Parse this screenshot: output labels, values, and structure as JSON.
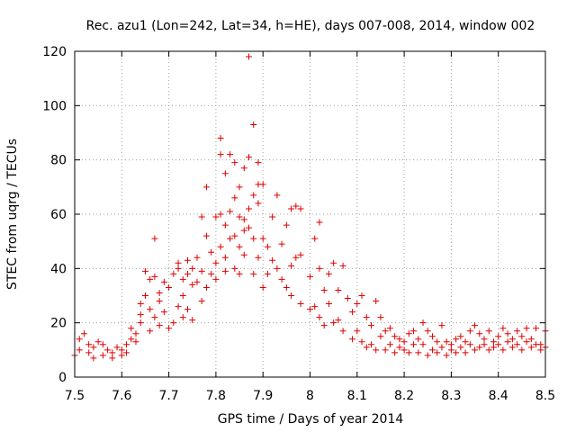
{
  "chart_data": {
    "type": "scatter",
    "title": "Rec. azu1 (Lon=242, Lat=34, h=HE), days 007-008, 2014, window 002",
    "xlabel": "GPS time / Days of year 2014",
    "ylabel": "STEC from uqrg / TECUs",
    "xlim": [
      7.5,
      8.5
    ],
    "ylim": [
      0,
      120
    ],
    "xticks": [
      7.5,
      7.6,
      7.7,
      7.8,
      7.9,
      8.0,
      8.1,
      8.2,
      8.3,
      8.4,
      8.5
    ],
    "xtick_labels": [
      "7.5",
      "7.6",
      "7.7",
      "7.8",
      "7.9",
      "8",
      "8.1",
      "8.2",
      "8.3",
      "8.4",
      "8.5"
    ],
    "yticks": [
      0,
      20,
      40,
      60,
      80,
      100,
      120
    ],
    "ytick_labels": [
      "0",
      "20",
      "40",
      "60",
      "80",
      "100",
      "120"
    ],
    "grid": true,
    "marker": "+",
    "color": "#e00000",
    "series": [
      {
        "name": "STEC",
        "points": [
          [
            7.5,
            8
          ],
          [
            7.51,
            10
          ],
          [
            7.51,
            14
          ],
          [
            7.52,
            16
          ],
          [
            7.53,
            9
          ],
          [
            7.53,
            12
          ],
          [
            7.54,
            7
          ],
          [
            7.54,
            11
          ],
          [
            7.55,
            13
          ],
          [
            7.56,
            8
          ],
          [
            7.56,
            12
          ],
          [
            7.57,
            10
          ],
          [
            7.58,
            7
          ],
          [
            7.58,
            9
          ],
          [
            7.59,
            11
          ],
          [
            7.6,
            8
          ],
          [
            7.6,
            10
          ],
          [
            7.61,
            12
          ],
          [
            7.61,
            9
          ],
          [
            7.62,
            14
          ],
          [
            7.62,
            18
          ],
          [
            7.63,
            13
          ],
          [
            7.63,
            16
          ],
          [
            7.64,
            20
          ],
          [
            7.64,
            23
          ],
          [
            7.64,
            27
          ],
          [
            7.65,
            30
          ],
          [
            7.65,
            39
          ],
          [
            7.66,
            25
          ],
          [
            7.66,
            36
          ],
          [
            7.66,
            17
          ],
          [
            7.67,
            51
          ],
          [
            7.67,
            37
          ],
          [
            7.67,
            22
          ],
          [
            7.68,
            31
          ],
          [
            7.68,
            28
          ],
          [
            7.68,
            19
          ],
          [
            7.69,
            35
          ],
          [
            7.69,
            24
          ],
          [
            7.7,
            33
          ],
          [
            7.7,
            18
          ],
          [
            7.71,
            38
          ],
          [
            7.71,
            20
          ],
          [
            7.72,
            40
          ],
          [
            7.72,
            42
          ],
          [
            7.72,
            26
          ],
          [
            7.73,
            36
          ],
          [
            7.73,
            30
          ],
          [
            7.73,
            22
          ],
          [
            7.74,
            43
          ],
          [
            7.74,
            38
          ],
          [
            7.74,
            25
          ],
          [
            7.75,
            40
          ],
          [
            7.75,
            34
          ],
          [
            7.75,
            21
          ],
          [
            7.76,
            44
          ],
          [
            7.76,
            35
          ],
          [
            7.77,
            59
          ],
          [
            7.77,
            39
          ],
          [
            7.77,
            28
          ],
          [
            7.78,
            70
          ],
          [
            7.78,
            52
          ],
          [
            7.78,
            33
          ],
          [
            7.79,
            46
          ],
          [
            7.79,
            38
          ],
          [
            7.8,
            59
          ],
          [
            7.8,
            42
          ],
          [
            7.8,
            36
          ],
          [
            7.81,
            88
          ],
          [
            7.81,
            82
          ],
          [
            7.81,
            48
          ],
          [
            7.81,
            60
          ],
          [
            7.82,
            75
          ],
          [
            7.82,
            56
          ],
          [
            7.82,
            44
          ],
          [
            7.82,
            39
          ],
          [
            7.83,
            82
          ],
          [
            7.83,
            61
          ],
          [
            7.83,
            51
          ],
          [
            7.84,
            79
          ],
          [
            7.84,
            66
          ],
          [
            7.84,
            52
          ],
          [
            7.84,
            40
          ],
          [
            7.85,
            70
          ],
          [
            7.85,
            59
          ],
          [
            7.85,
            48
          ],
          [
            7.85,
            38
          ],
          [
            7.86,
            77
          ],
          [
            7.86,
            58
          ],
          [
            7.86,
            54
          ],
          [
            7.86,
            45
          ],
          [
            7.87,
            118
          ],
          [
            7.87,
            81
          ],
          [
            7.87,
            62
          ],
          [
            7.87,
            55
          ],
          [
            7.88,
            93
          ],
          [
            7.88,
            67
          ],
          [
            7.88,
            51
          ],
          [
            7.88,
            38
          ],
          [
            7.89,
            79
          ],
          [
            7.89,
            71
          ],
          [
            7.89,
            64
          ],
          [
            7.89,
            44
          ],
          [
            7.9,
            71
          ],
          [
            7.9,
            51
          ],
          [
            7.9,
            33
          ],
          [
            7.91,
            48
          ],
          [
            7.91,
            38
          ],
          [
            7.92,
            59
          ],
          [
            7.92,
            43
          ],
          [
            7.93,
            67
          ],
          [
            7.93,
            40
          ],
          [
            7.94,
            49
          ],
          [
            7.94,
            36
          ],
          [
            7.95,
            56
          ],
          [
            7.95,
            33
          ],
          [
            7.96,
            62
          ],
          [
            7.96,
            41
          ],
          [
            7.96,
            30
          ],
          [
            7.97,
            63
          ],
          [
            7.97,
            44
          ],
          [
            7.98,
            62
          ],
          [
            7.98,
            45
          ],
          [
            7.98,
            27
          ],
          [
            8.0,
            37
          ],
          [
            8.0,
            25
          ],
          [
            8.01,
            51
          ],
          [
            8.01,
            26
          ],
          [
            8.02,
            57
          ],
          [
            8.02,
            40
          ],
          [
            8.02,
            22
          ],
          [
            8.03,
            32
          ],
          [
            8.03,
            19
          ],
          [
            8.04,
            38
          ],
          [
            8.04,
            27
          ],
          [
            8.05,
            42
          ],
          [
            8.05,
            20
          ],
          [
            8.06,
            32
          ],
          [
            8.06,
            21
          ],
          [
            8.07,
            41
          ],
          [
            8.07,
            17
          ],
          [
            8.08,
            29
          ],
          [
            8.09,
            24
          ],
          [
            8.09,
            14
          ],
          [
            8.1,
            27
          ],
          [
            8.1,
            17
          ],
          [
            8.11,
            30
          ],
          [
            8.11,
            13
          ],
          [
            8.12,
            22
          ],
          [
            8.12,
            11
          ],
          [
            8.13,
            19
          ],
          [
            8.13,
            12
          ],
          [
            8.14,
            28
          ],
          [
            8.14,
            10
          ],
          [
            8.15,
            22
          ],
          [
            8.15,
            15
          ],
          [
            8.16,
            17
          ],
          [
            8.16,
            10
          ],
          [
            8.17,
            18
          ],
          [
            8.17,
            12
          ],
          [
            8.18,
            15
          ],
          [
            8.18,
            9
          ],
          [
            8.19,
            14
          ],
          [
            8.19,
            11
          ],
          [
            8.2,
            13
          ],
          [
            8.2,
            10
          ],
          [
            8.21,
            16
          ],
          [
            8.21,
            9
          ],
          [
            8.22,
            17
          ],
          [
            8.22,
            12
          ],
          [
            8.23,
            14
          ],
          [
            8.23,
            9
          ],
          [
            8.24,
            20
          ],
          [
            8.24,
            12
          ],
          [
            8.25,
            17
          ],
          [
            8.25,
            8
          ],
          [
            8.26,
            15
          ],
          [
            8.26,
            10
          ],
          [
            8.27,
            13
          ],
          [
            8.27,
            9
          ],
          [
            8.28,
            19
          ],
          [
            8.28,
            11
          ],
          [
            8.29,
            13
          ],
          [
            8.29,
            8
          ],
          [
            8.3,
            12
          ],
          [
            8.3,
            10
          ],
          [
            8.31,
            14
          ],
          [
            8.31,
            9
          ],
          [
            8.32,
            15
          ],
          [
            8.32,
            11
          ],
          [
            8.33,
            13
          ],
          [
            8.33,
            9
          ],
          [
            8.34,
            17
          ],
          [
            8.34,
            12
          ],
          [
            8.35,
            19
          ],
          [
            8.35,
            10
          ],
          [
            8.36,
            16
          ],
          [
            8.36,
            11
          ],
          [
            8.37,
            14
          ],
          [
            8.37,
            12
          ],
          [
            8.38,
            17
          ],
          [
            8.38,
            10
          ],
          [
            8.39,
            13
          ],
          [
            8.39,
            11
          ],
          [
            8.4,
            15
          ],
          [
            8.4,
            12
          ],
          [
            8.41,
            18
          ],
          [
            8.41,
            10
          ],
          [
            8.42,
            16
          ],
          [
            8.42,
            13
          ],
          [
            8.43,
            14
          ],
          [
            8.43,
            11
          ],
          [
            8.44,
            17
          ],
          [
            8.44,
            12
          ],
          [
            8.45,
            15
          ],
          [
            8.45,
            10
          ],
          [
            8.46,
            18
          ],
          [
            8.46,
            13
          ],
          [
            8.47,
            14
          ],
          [
            8.47,
            11
          ],
          [
            8.48,
            18
          ],
          [
            8.48,
            12
          ],
          [
            8.49,
            12
          ],
          [
            8.49,
            10
          ],
          [
            8.5,
            17
          ],
          [
            8.5,
            11
          ]
        ]
      }
    ]
  }
}
